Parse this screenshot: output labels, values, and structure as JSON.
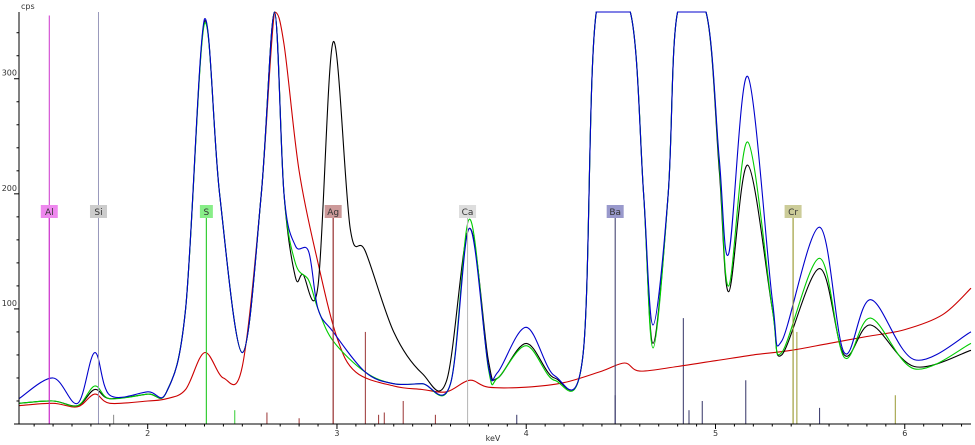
{
  "chart_data": {
    "type": "line",
    "title": "",
    "ylabel": "cps",
    "xlabel": "keV",
    "xlim": [
      1.32,
      6.35
    ],
    "ylim": [
      0,
      358
    ],
    "x_ticks": [
      2,
      3,
      4,
      5,
      6
    ],
    "y_ticks": [
      100,
      200,
      300
    ],
    "grid": false,
    "series": [
      {
        "color": "#000000",
        "points": [
          [
            1.32,
            18
          ],
          [
            1.5,
            20
          ],
          [
            1.63,
            16
          ],
          [
            1.72,
            30
          ],
          [
            1.8,
            22
          ],
          [
            2.0,
            26
          ],
          [
            2.1,
            28
          ],
          [
            2.2,
            100
          ],
          [
            2.3,
            350
          ],
          [
            2.38,
            200
          ],
          [
            2.5,
            62
          ],
          [
            2.6,
            200
          ],
          [
            2.67,
            360
          ],
          [
            2.72,
            200
          ],
          [
            2.78,
            128
          ],
          [
            2.82,
            130
          ],
          [
            2.9,
            120
          ],
          [
            2.98,
            332
          ],
          [
            3.07,
            170
          ],
          [
            3.15,
            150
          ],
          [
            3.3,
            80
          ],
          [
            3.45,
            44
          ],
          [
            3.58,
            38
          ],
          [
            3.7,
            170
          ],
          [
            3.8,
            55
          ],
          [
            3.85,
            40
          ],
          [
            4.0,
            70
          ],
          [
            4.15,
            40
          ],
          [
            4.3,
            60
          ],
          [
            4.37,
            360
          ],
          [
            4.55,
            360
          ],
          [
            4.62,
            200
          ],
          [
            4.67,
            70
          ],
          [
            4.75,
            200
          ],
          [
            4.8,
            360
          ],
          [
            4.95,
            360
          ],
          [
            5.02,
            220
          ],
          [
            5.07,
            115
          ],
          [
            5.17,
            225
          ],
          [
            5.3,
            100
          ],
          [
            5.35,
            60
          ],
          [
            5.55,
            135
          ],
          [
            5.68,
            60
          ],
          [
            5.82,
            86
          ],
          [
            6.05,
            50
          ],
          [
            6.35,
            64
          ]
        ]
      },
      {
        "color": "#0000cc",
        "points": [
          [
            1.32,
            22
          ],
          [
            1.5,
            40
          ],
          [
            1.63,
            18
          ],
          [
            1.72,
            62
          ],
          [
            1.8,
            25
          ],
          [
            2.0,
            28
          ],
          [
            2.1,
            28
          ],
          [
            2.2,
            100
          ],
          [
            2.3,
            352
          ],
          [
            2.38,
            200
          ],
          [
            2.5,
            62
          ],
          [
            2.6,
            200
          ],
          [
            2.67,
            360
          ],
          [
            2.72,
            200
          ],
          [
            2.78,
            155
          ],
          [
            2.85,
            150
          ],
          [
            2.9,
            100
          ],
          [
            2.98,
            80
          ],
          [
            3.15,
            45
          ],
          [
            3.3,
            35
          ],
          [
            3.45,
            35
          ],
          [
            3.6,
            35
          ],
          [
            3.7,
            170
          ],
          [
            3.8,
            50
          ],
          [
            3.85,
            45
          ],
          [
            4.0,
            84
          ],
          [
            4.15,
            42
          ],
          [
            4.3,
            60
          ],
          [
            4.37,
            360
          ],
          [
            4.55,
            360
          ],
          [
            4.62,
            200
          ],
          [
            4.67,
            86
          ],
          [
            4.75,
            200
          ],
          [
            4.8,
            360
          ],
          [
            4.95,
            360
          ],
          [
            5.02,
            230
          ],
          [
            5.07,
            148
          ],
          [
            5.17,
            302
          ],
          [
            5.3,
            108
          ],
          [
            5.35,
            72
          ],
          [
            5.55,
            171
          ],
          [
            5.68,
            62
          ],
          [
            5.82,
            108
          ],
          [
            6.05,
            56
          ],
          [
            6.35,
            80
          ]
        ]
      },
      {
        "color": "#00cc00",
        "points": [
          [
            1.32,
            18
          ],
          [
            1.5,
            20
          ],
          [
            1.63,
            16
          ],
          [
            1.72,
            33
          ],
          [
            1.8,
            22
          ],
          [
            2.0,
            26
          ],
          [
            2.1,
            28
          ],
          [
            2.2,
            100
          ],
          [
            2.3,
            348
          ],
          [
            2.38,
            200
          ],
          [
            2.5,
            62
          ],
          [
            2.6,
            200
          ],
          [
            2.67,
            360
          ],
          [
            2.72,
            200
          ],
          [
            2.78,
            140
          ],
          [
            2.85,
            125
          ],
          [
            2.9,
            100
          ],
          [
            2.98,
            72
          ],
          [
            3.15,
            45
          ],
          [
            3.3,
            35
          ],
          [
            3.45,
            35
          ],
          [
            3.6,
            35
          ],
          [
            3.7,
            178
          ],
          [
            3.8,
            48
          ],
          [
            3.85,
            40
          ],
          [
            4.0,
            68
          ],
          [
            4.15,
            38
          ],
          [
            4.3,
            60
          ],
          [
            4.37,
            360
          ],
          [
            4.55,
            360
          ],
          [
            4.62,
            200
          ],
          [
            4.67,
            66
          ],
          [
            4.75,
            200
          ],
          [
            4.8,
            360
          ],
          [
            4.95,
            360
          ],
          [
            5.02,
            225
          ],
          [
            5.07,
            120
          ],
          [
            5.17,
            245
          ],
          [
            5.3,
            100
          ],
          [
            5.35,
            62
          ],
          [
            5.55,
            144
          ],
          [
            5.68,
            58
          ],
          [
            5.82,
            92
          ],
          [
            6.05,
            48
          ],
          [
            6.35,
            70
          ]
        ]
      },
      {
        "color": "#cc0000",
        "points": [
          [
            1.32,
            16
          ],
          [
            1.5,
            18
          ],
          [
            1.63,
            15
          ],
          [
            1.72,
            26
          ],
          [
            1.8,
            18
          ],
          [
            2.0,
            20
          ],
          [
            2.1,
            22
          ],
          [
            2.2,
            30
          ],
          [
            2.3,
            62
          ],
          [
            2.4,
            40
          ],
          [
            2.5,
            50
          ],
          [
            2.6,
            200
          ],
          [
            2.67,
            360
          ],
          [
            2.72,
            330
          ],
          [
            2.8,
            220
          ],
          [
            2.9,
            140
          ],
          [
            3.0,
            75
          ],
          [
            3.1,
            45
          ],
          [
            3.3,
            33
          ],
          [
            3.45,
            30
          ],
          [
            3.58,
            28
          ],
          [
            3.7,
            38
          ],
          [
            3.8,
            32
          ],
          [
            4.0,
            32
          ],
          [
            4.2,
            36
          ],
          [
            4.4,
            46
          ],
          [
            4.52,
            53
          ],
          [
            4.6,
            46
          ],
          [
            4.8,
            50
          ],
          [
            5.0,
            55
          ],
          [
            5.2,
            60
          ],
          [
            5.4,
            64
          ],
          [
            5.6,
            70
          ],
          [
            5.8,
            76
          ],
          [
            6.0,
            82
          ],
          [
            6.2,
            95
          ],
          [
            6.35,
            118
          ]
        ]
      }
    ],
    "element_markers": [
      {
        "label": "Al",
        "x": 1.48,
        "color": "#cc33cc",
        "fill": "#ee88ee"
      },
      {
        "label": "Si",
        "x": 1.74,
        "color": "#9999bb",
        "fill": "#cccccc"
      },
      {
        "label": "S",
        "x": 2.31,
        "color": "#33cc33",
        "fill": "#88ee88"
      },
      {
        "label": "Ag",
        "x": 2.98,
        "color": "#993333",
        "fill": "#cc9999"
      },
      {
        "label": "Ca",
        "x": 3.69,
        "color": "#bbbbbb",
        "fill": "#dddddd"
      },
      {
        "label": "Ba",
        "x": 4.47,
        "color": "#333366",
        "fill": "#9999cc"
      },
      {
        "label": "Cr",
        "x": 5.41,
        "color": "#999933",
        "fill": "#cccc99"
      }
    ],
    "reference_lines": [
      {
        "x": 1.48,
        "h": 355,
        "color": "#cc33cc"
      },
      {
        "x": 1.74,
        "h": 370,
        "color": "#9999bb"
      },
      {
        "x": 1.82,
        "h": 8,
        "color": "#888888"
      },
      {
        "x": 2.31,
        "h": 185,
        "color": "#33cc33"
      },
      {
        "x": 2.46,
        "h": 12,
        "color": "#33cc33"
      },
      {
        "x": 2.63,
        "h": 10,
        "color": "#993333"
      },
      {
        "x": 2.8,
        "h": 5,
        "color": "#993333"
      },
      {
        "x": 2.98,
        "h": 185,
        "color": "#993333"
      },
      {
        "x": 3.15,
        "h": 80,
        "color": "#993333"
      },
      {
        "x": 3.22,
        "h": 8,
        "color": "#993333"
      },
      {
        "x": 3.25,
        "h": 10,
        "color": "#993333"
      },
      {
        "x": 3.35,
        "h": 20,
        "color": "#993333"
      },
      {
        "x": 3.52,
        "h": 8,
        "color": "#993333"
      },
      {
        "x": 3.69,
        "h": 90,
        "color": "#bbbbbb"
      },
      {
        "x": 3.95,
        "h": 8,
        "color": "#333366"
      },
      {
        "x": 4.47,
        "h": 25,
        "color": "#333366"
      },
      {
        "x": 4.83,
        "h": 92,
        "color": "#333366"
      },
      {
        "x": 4.86,
        "h": 12,
        "color": "#333366"
      },
      {
        "x": 4.93,
        "h": 20,
        "color": "#333366"
      },
      {
        "x": 5.16,
        "h": 38,
        "color": "#333366"
      },
      {
        "x": 5.41,
        "h": 185,
        "color": "#999933"
      },
      {
        "x": 5.43,
        "h": 80,
        "color": "#999933"
      },
      {
        "x": 5.55,
        "h": 14,
        "color": "#333366"
      },
      {
        "x": 5.95,
        "h": 25,
        "color": "#999933"
      }
    ]
  }
}
